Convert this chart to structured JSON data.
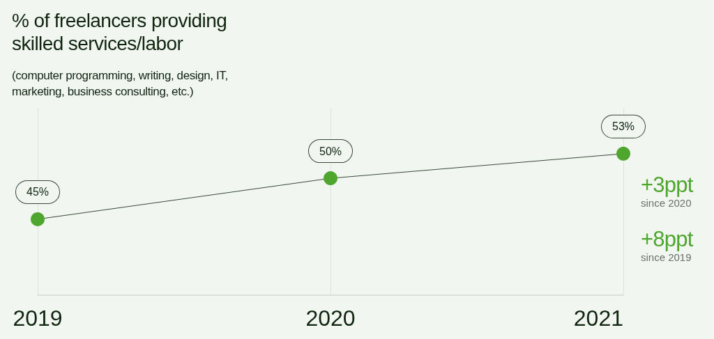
{
  "chart_data": {
    "type": "line",
    "title": "% of freelancers providing skilled services/labor",
    "subtitle": "(computer programming, writing, design, IT, marketing, business consulting, etc.)",
    "categories": [
      "2019",
      "2020",
      "2021"
    ],
    "series": [
      {
        "color": "#4ea62f",
        "values": [
          45,
          50,
          53
        ],
        "value_labels": [
          "45%",
          "50%",
          "53%"
        ]
      }
    ],
    "annotations": [
      "+3ppt\nsince 2020",
      "+8ppt\nsince 2019"
    ],
    "grid": "x",
    "marker": "circle",
    "line_style": "solid"
  }
}
